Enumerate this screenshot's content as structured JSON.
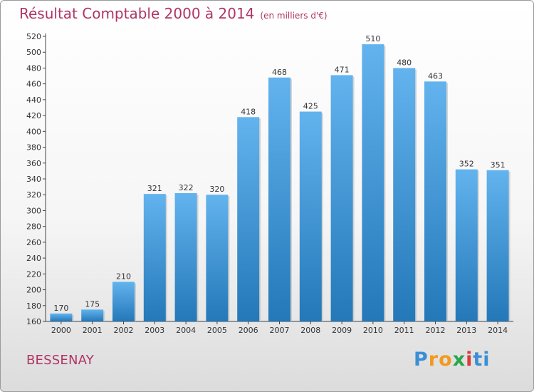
{
  "chart_data": {
    "type": "bar",
    "title": "Résultat Comptable 2000 à 2014",
    "subtitle": "(en milliers d'€)",
    "categories": [
      "2000",
      "2001",
      "2002",
      "2003",
      "2004",
      "2005",
      "2006",
      "2007",
      "2008",
      "2009",
      "2010",
      "2011",
      "2012",
      "2013",
      "2014"
    ],
    "values": [
      170,
      175,
      210,
      321,
      322,
      320,
      418,
      468,
      425,
      471,
      510,
      480,
      463,
      352,
      351
    ],
    "ylim": [
      160,
      520
    ],
    "yticks": [
      160,
      180,
      200,
      220,
      240,
      260,
      280,
      300,
      320,
      340,
      360,
      380,
      400,
      420,
      440,
      460,
      480,
      500,
      520
    ],
    "grid": false,
    "xlabel": "",
    "ylabel": ""
  },
  "location": "BESSENAY",
  "brand": {
    "letters": [
      "P",
      "r",
      "o",
      "x",
      "i",
      "t",
      "i"
    ],
    "colors": [
      "#3a8fd6",
      "#f39a1e",
      "#f39a1e",
      "#2aa64a",
      "#d93a3a",
      "#3a8fd6",
      "#3a8fd6"
    ]
  },
  "colors": {
    "bar_top": "#62b3ee",
    "bar_bottom": "#2478b8",
    "title": "#b03464"
  }
}
